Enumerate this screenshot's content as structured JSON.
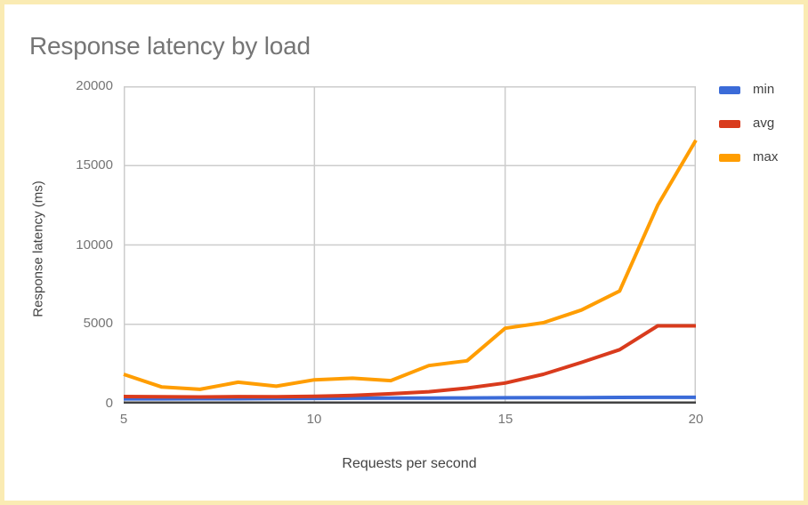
{
  "chart": {
    "title_color": "#757575",
    "border_color": "#FAEBB3",
    "grid_color": "#cccccc",
    "axis_line_color": "#424242",
    "tick_label_color": "#757575"
  },
  "chart_data": {
    "type": "line",
    "title": "Response latency by load",
    "xlabel": "Requests per second",
    "ylabel": "Response latency (ms)",
    "xlim": [
      5,
      20
    ],
    "ylim": [
      0,
      20000
    ],
    "grid": true,
    "legend_position": "right",
    "x": [
      5,
      6,
      7,
      8,
      9,
      10,
      11,
      12,
      13,
      14,
      15,
      16,
      17,
      18,
      19,
      20
    ],
    "series": [
      {
        "name": "min",
        "color": "#3B6BD8",
        "values": [
          300,
          300,
          310,
          310,
          320,
          330,
          340,
          350,
          350,
          360,
          370,
          380,
          380,
          390,
          400,
          400
        ]
      },
      {
        "name": "avg",
        "color": "#D93B1D",
        "values": [
          450,
          430,
          420,
          440,
          430,
          460,
          520,
          620,
          750,
          980,
          1300,
          1850,
          2600,
          3400,
          4900,
          4900
        ]
      },
      {
        "name": "max",
        "color": "#FF9D00",
        "values": [
          1850,
          1050,
          900,
          1350,
          1100,
          1500,
          1600,
          1450,
          2400,
          2700,
          4750,
          5100,
          5900,
          7100,
          12500,
          16600
        ]
      }
    ],
    "ygrid_values": [
      0,
      5000,
      10000,
      15000,
      20000
    ],
    "xgrid_values": [
      5,
      10,
      15,
      20
    ],
    "ytick_labels": [
      "20000",
      "15000",
      "10000",
      "5000",
      "0"
    ],
    "xtick_labels": [
      "5",
      "10",
      "15",
      "20"
    ]
  }
}
